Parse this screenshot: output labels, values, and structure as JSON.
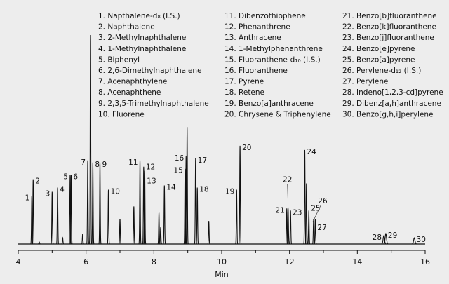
{
  "chart_data": {
    "type": "line",
    "xlabel": "Min",
    "ylabel": "",
    "xlim": [
      4,
      16
    ],
    "x_ticks": [
      4,
      6,
      8,
      10,
      12,
      14,
      16
    ],
    "grid": false,
    "legend_placement": "top",
    "line_color": "#111111",
    "background": "#ededed",
    "legend": [
      "1.  Napthalene-d₈ (I.S.)",
      "2.  Naphthalene",
      "3.  2-Methylnaphthalene",
      "4.  1-Methylnaphthalene",
      "5.  Biphenyl",
      "6.  2,6-Dimethylnaphthalene",
      "7.  Acenaphthylene",
      "8.  Acenaphthene",
      "9.  2,3,5-Trimethylnaphthalene",
      "10. Fluorene",
      "11.  Dibenzothiophene",
      "12.  Phenanthrene",
      "13.  Anthracene",
      "14.  1-Methylphenanthrene",
      "15.  Fluoranthene-d₁₀ (I.S.)",
      "16.  Fluoranthene",
      "17.  Pyrene",
      "18.  Retene",
      "19.  Benzo[a]anthracene",
      "20.  Chrysene & Triphenylene",
      "21.  Benzo[b]fluoranthene",
      "22.  Benzo[k]fluoranthene",
      "23.  Benzo[j]fluoranthene",
      "24.  Benzo[e]pyrene",
      "25.  Benzo[a]pyrene",
      "26.  Perylene-d₁₂ (I.S.)",
      "27.  Perylene",
      "28.  Indeno[1,2,3-cd]pyrene",
      "29.  Dibenz[a,h]anthracene",
      "30.  Benzo[g,h,i]perylene"
    ],
    "peaks": [
      {
        "label": "1",
        "rt": 4.4,
        "height": 23
      },
      {
        "label": "2",
        "rt": 4.44,
        "height": 31
      },
      {
        "label": "",
        "rt": 4.62,
        "height": 1
      },
      {
        "label": "3",
        "rt": 5.0,
        "height": 25
      },
      {
        "label": "4",
        "rt": 5.16,
        "height": 27
      },
      {
        "label": "",
        "rt": 5.31,
        "height": 3
      },
      {
        "label": "5",
        "rt": 5.53,
        "height": 33
      },
      {
        "label": "6",
        "rt": 5.56,
        "height": 33
      },
      {
        "label": "",
        "rt": 5.9,
        "height": 5
      },
      {
        "label": "7",
        "rt": 6.05,
        "height": 40
      },
      {
        "label": "",
        "rt": 6.13,
        "height": 100
      },
      {
        "label": "8",
        "rt": 6.2,
        "height": 39
      },
      {
        "label": "9",
        "rt": 6.41,
        "height": 39
      },
      {
        "label": "10",
        "rt": 6.66,
        "height": 26
      },
      {
        "label": "",
        "rt": 7.0,
        "height": 12
      },
      {
        "label": "",
        "rt": 7.41,
        "height": 18
      },
      {
        "label": "11",
        "rt": 7.59,
        "height": 40
      },
      {
        "label": "12",
        "rt": 7.7,
        "height": 37
      },
      {
        "label": "13",
        "rt": 7.73,
        "height": 35
      },
      {
        "label": "",
        "rt": 8.15,
        "height": 15
      },
      {
        "label": "",
        "rt": 8.2,
        "height": 8
      },
      {
        "label": "14",
        "rt": 8.31,
        "height": 28
      },
      {
        "label": "15",
        "rt": 8.92,
        "height": 36
      },
      {
        "label": "16",
        "rt": 8.95,
        "height": 42
      },
      {
        "label": "",
        "rt": 8.98,
        "height": 56
      },
      {
        "label": "17",
        "rt": 9.23,
        "height": 41
      },
      {
        "label": "18",
        "rt": 9.28,
        "height": 27
      },
      {
        "label": "",
        "rt": 9.62,
        "height": 11
      },
      {
        "label": "19",
        "rt": 10.44,
        "height": 26
      },
      {
        "label": "20",
        "rt": 10.54,
        "height": 47
      },
      {
        "label": "21",
        "rt": 11.92,
        "height": 17
      },
      {
        "label": "22",
        "rt": 11.96,
        "height": 17
      },
      {
        "label": "23",
        "rt": 12.03,
        "height": 16
      },
      {
        "label": "24",
        "rt": 12.45,
        "height": 45
      },
      {
        "label": "",
        "rt": 12.5,
        "height": 29
      },
      {
        "label": "25",
        "rt": 12.57,
        "height": 16
      },
      {
        "label": "26",
        "rt": 12.71,
        "height": 12
      },
      {
        "label": "27",
        "rt": 12.76,
        "height": 12
      },
      {
        "label": "28",
        "rt": 14.78,
        "height": 4
      },
      {
        "label": "29",
        "rt": 14.84,
        "height": 5
      },
      {
        "label": "30",
        "rt": 15.68,
        "height": 3
      }
    ]
  }
}
